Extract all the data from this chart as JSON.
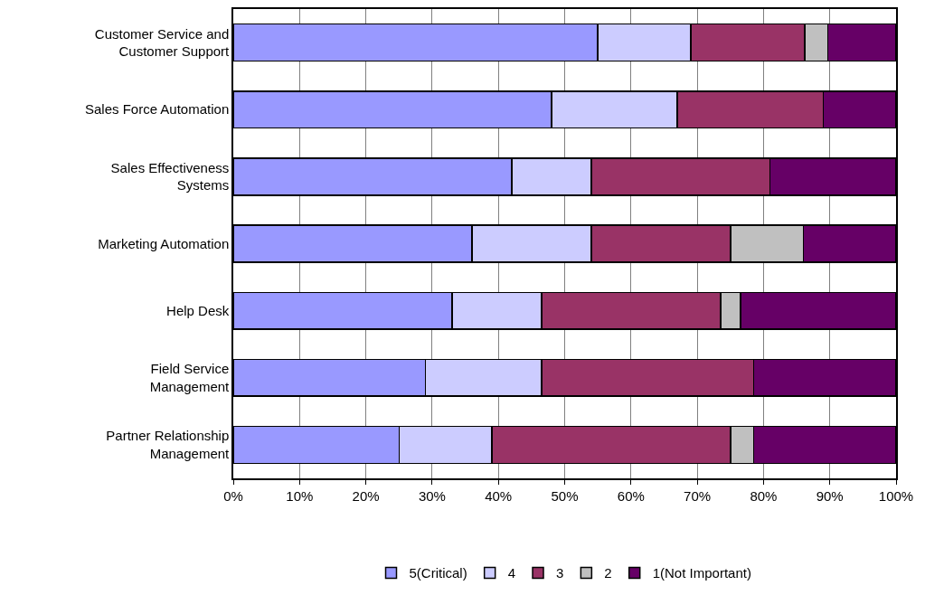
{
  "chart_data": {
    "type": "bar",
    "orientation": "horizontal",
    "stacked": true,
    "categories": [
      "Customer Service and Customer Support",
      "Sales Force Automation",
      "Sales Effectiveness Systems",
      "Marketing Automation",
      "Help Desk",
      "Field Service Management",
      "Partner Relationship Management"
    ],
    "series": [
      {
        "name": "5(Critical)",
        "color": "#9999ff",
        "values": [
          55,
          48,
          42,
          36,
          33,
          29,
          25
        ]
      },
      {
        "name": "4",
        "color": "#ccccff",
        "values": [
          14,
          19,
          12,
          18,
          13.5,
          17.5,
          14
        ]
      },
      {
        "name": "3",
        "color": "#993366",
        "values": [
          17.2,
          22,
          27,
          21,
          27,
          32,
          36
        ]
      },
      {
        "name": "2",
        "color": "#c0c0c0",
        "values": [
          3.5,
          null,
          null,
          11,
          3,
          null,
          3.5
        ]
      },
      {
        "name": "1(Not Important)",
        "color": "#660066",
        "values": [
          10.3,
          11,
          19,
          14,
          23.5,
          21.5,
          21.5
        ]
      }
    ],
    "xlim": [
      0,
      100
    ],
    "xticks": [
      {
        "value": 0,
        "label": "0%"
      },
      {
        "value": 10,
        "label": "10%"
      },
      {
        "value": 20,
        "label": "20%"
      },
      {
        "value": 30,
        "label": "30%"
      },
      {
        "value": 40,
        "label": "40%"
      },
      {
        "value": 50,
        "label": "50%"
      },
      {
        "value": 60,
        "label": "60%"
      },
      {
        "value": 70,
        "label": "70%"
      },
      {
        "value": 80,
        "label": "80%"
      },
      {
        "value": 90,
        "label": "90%"
      },
      {
        "value": 100,
        "label": "100%"
      }
    ],
    "grid": "x",
    "legend": "bottom"
  }
}
